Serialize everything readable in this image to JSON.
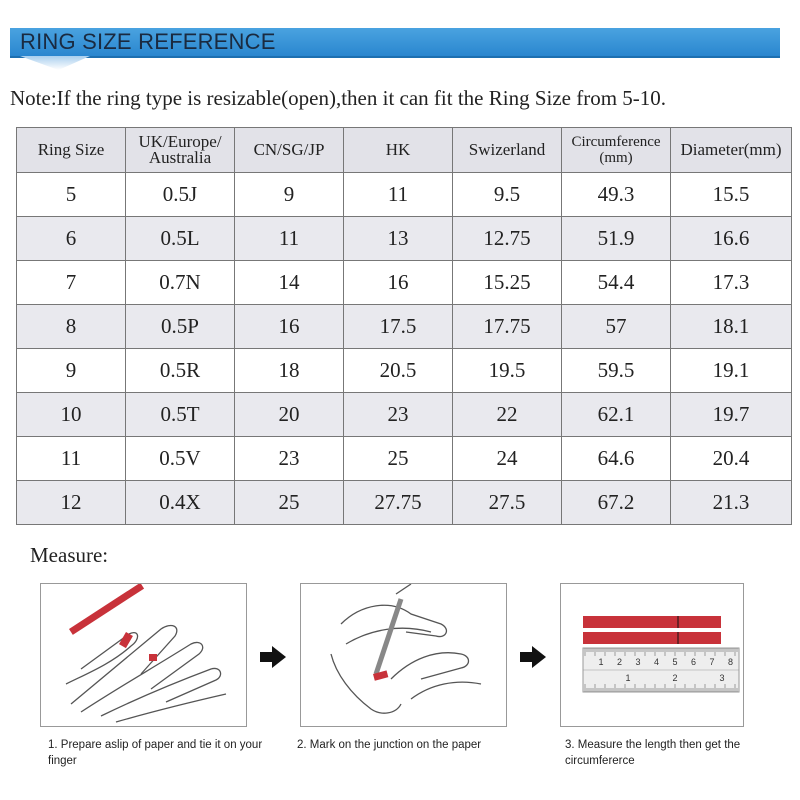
{
  "header": {
    "title": "RING SIZE REFERENCE"
  },
  "note": "Note:If the ring type is resizable(open),then it can fit the Ring Size from 5-10.",
  "table": {
    "columns": [
      "Ring Size",
      "UK/Europe/\nAustralia",
      "CN/SG/JP",
      "HK",
      "Swizerland",
      "Circumference\n(mm)",
      "Diameter(mm)"
    ],
    "rows": [
      [
        5,
        "0.5J",
        9,
        11,
        9.5,
        49.3,
        15.5
      ],
      [
        6,
        "0.5L",
        11,
        13,
        12.75,
        51.9,
        16.6
      ],
      [
        7,
        "0.7N",
        14,
        16,
        15.25,
        54.4,
        17.3
      ],
      [
        8,
        "0.5P",
        16,
        17.5,
        17.75,
        57,
        18.1
      ],
      [
        9,
        "0.5R",
        18,
        20.5,
        19.5,
        59.5,
        19.1
      ],
      [
        10,
        "0.5T",
        20,
        23,
        22,
        62.1,
        19.7
      ],
      [
        11,
        "0.5V",
        23,
        25,
        24,
        64.6,
        20.4
      ],
      [
        12,
        "0.4X",
        25,
        27.75,
        27.5,
        67.2,
        21.3
      ]
    ]
  },
  "measure": {
    "title": "Measure:",
    "steps": [
      {
        "caption": "1. Prepare aslip of paper and tie it on your finger"
      },
      {
        "caption": "2. Mark on the junction on the paper"
      },
      {
        "caption": "3. Measure the length then get the circumfererce"
      }
    ],
    "ruler": {
      "cm": [
        1,
        2,
        3,
        4,
        5,
        6,
        7,
        8
      ],
      "inch": [
        1,
        2,
        3
      ]
    }
  }
}
